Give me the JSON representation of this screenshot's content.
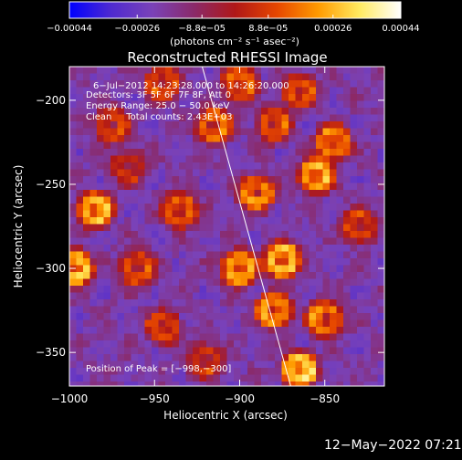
{
  "chart_data": {
    "type": "heatmap",
    "title": "Reconstructed RHESSI Image",
    "xlabel": "Heliocentric X (arcsec)",
    "ylabel": "Heliocentric Y (arcsec)",
    "xlim": [
      -1000,
      -815
    ],
    "ylim": [
      -370,
      -180
    ],
    "x_ticks": [
      -1000,
      -950,
      -900,
      -850
    ],
    "x_tick_labels": [
      "−1000",
      "−950",
      "−900",
      "−850"
    ],
    "y_ticks": [
      -200,
      -250,
      -300,
      -350
    ],
    "y_tick_labels": [
      "−200",
      "−250",
      "−300",
      "−350"
    ],
    "colorbar": {
      "range": [
        -0.00044,
        0.00044
      ],
      "ticks": [
        -0.00044,
        -0.00026,
        -8.8e-05,
        8.8e-05,
        0.00026,
        0.00044
      ],
      "tick_labels": [
        "−0.00044",
        "−0.00026",
        "−8.8e−05",
        "8.8e−05",
        "0.00026",
        "0.00044"
      ],
      "unit_label": "(photons cm⁻² s⁻¹ asec⁻²)",
      "colors": [
        "#0000ff",
        "#4e2ad0",
        "#7a42b8",
        "#8a2a6a",
        "#b01818",
        "#e64600",
        "#ff9a00",
        "#ffea60",
        "#ffffff"
      ]
    },
    "annotations": [
      "6−Jul−2012 14:23:28.000 to 14:26:20.000",
      "Detectors: 3F 5F 6F 7F 8F, Att 0",
      "Energy Range: 25.0 − 50.0 keV",
      "Clean     Total counts: 2.43E+03"
    ],
    "peak_label": "Position of Peak = [−998,−300]",
    "peak_position": [
      -998,
      -300
    ],
    "limb_line": [
      [
        -922,
        -180
      ],
      [
        -870,
        -370
      ]
    ],
    "blobs": [
      {
        "x": -985,
        "y": -265,
        "v": 0.9
      },
      {
        "x": -997,
        "y": -300,
        "v": 1.0
      },
      {
        "x": -975,
        "y": -215,
        "v": 0.55
      },
      {
        "x": -960,
        "y": -300,
        "v": 0.6
      },
      {
        "x": -945,
        "y": -190,
        "v": 0.6
      },
      {
        "x": -935,
        "y": -265,
        "v": 0.65
      },
      {
        "x": -915,
        "y": -215,
        "v": 0.7
      },
      {
        "x": -900,
        "y": -190,
        "v": 0.65
      },
      {
        "x": -890,
        "y": -255,
        "v": 0.75
      },
      {
        "x": -880,
        "y": -215,
        "v": 0.6
      },
      {
        "x": -865,
        "y": -195,
        "v": 0.6
      },
      {
        "x": -855,
        "y": -245,
        "v": 0.85
      },
      {
        "x": -845,
        "y": -225,
        "v": 0.75
      },
      {
        "x": -900,
        "y": -300,
        "v": 0.85
      },
      {
        "x": -875,
        "y": -295,
        "v": 0.95
      },
      {
        "x": -880,
        "y": -325,
        "v": 0.8
      },
      {
        "x": -850,
        "y": -330,
        "v": 0.75
      },
      {
        "x": -865,
        "y": -360,
        "v": 0.95
      },
      {
        "x": -945,
        "y": -335,
        "v": 0.55
      },
      {
        "x": -830,
        "y": -275,
        "v": 0.55
      },
      {
        "x": -920,
        "y": -355,
        "v": 0.5
      },
      {
        "x": -965,
        "y": -240,
        "v": 0.45
      }
    ]
  },
  "timestamp": "12−May−2022 07:21"
}
